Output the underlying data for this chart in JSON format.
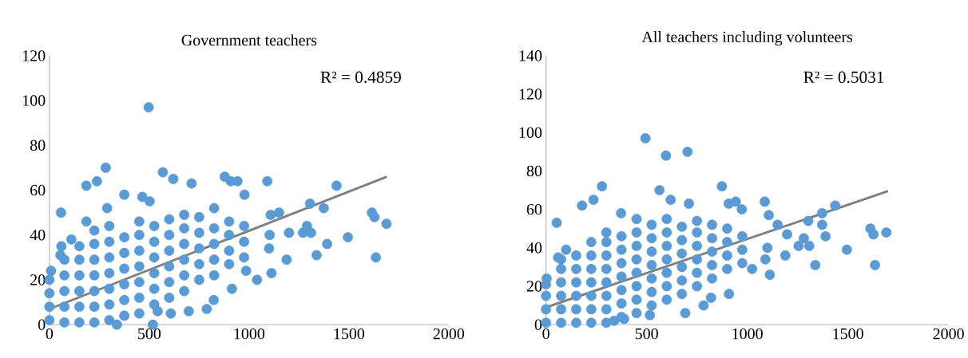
{
  "chart_data": [
    {
      "type": "scatter",
      "title": "Government teachers",
      "xlim": [
        0,
        2000
      ],
      "ylim": [
        0,
        120
      ],
      "xticks": [
        0,
        500,
        1000,
        1500,
        2000
      ],
      "yticks": [
        0,
        20,
        40,
        60,
        80,
        100,
        120
      ],
      "grid": false,
      "marker": "circle",
      "annotations": [
        "R² = 0.4859"
      ],
      "series": [
        {
          "type": "scatter",
          "color": "#5b9bd5",
          "x": [
            0,
            0,
            0,
            0,
            75,
            75,
            75,
            75,
            75,
            150,
            150,
            150,
            150,
            150,
            150,
            225,
            225,
            225,
            225,
            225,
            225,
            225,
            300,
            300,
            300,
            300,
            300,
            300,
            300,
            375,
            375,
            375,
            375,
            375,
            375,
            450,
            450,
            450,
            450,
            450,
            450,
            450,
            525,
            525,
            525,
            525,
            525,
            525,
            600,
            600,
            600,
            600,
            600,
            600,
            675,
            675,
            675,
            675,
            675,
            675,
            750,
            750,
            750,
            750,
            750,
            825,
            825,
            825,
            825,
            825,
            900,
            900,
            900,
            900,
            975,
            975,
            975,
            497,
            282,
            238,
            185,
            58,
            568,
            620,
            712,
            878,
            908,
            942,
            1091,
            977,
            375,
            465,
            502,
            289,
            1305,
            1374,
            1438,
            1615,
            1628,
            1688,
            1635,
            1495,
            1391,
            1338,
            1188,
            1200,
            1270,
            1290,
            1310,
            1108,
            1150,
            1103,
            1100,
            1112,
            1040,
            985,
            914,
            823,
            788,
            698,
            608,
            542,
            518,
            338,
            8,
            60,
            55,
            110,
            185
          ],
          "values": [
            2,
            8,
            14,
            20,
            1,
            8,
            15,
            22,
            29,
            1,
            8,
            15,
            22,
            29,
            35,
            1,
            8,
            15,
            22,
            29,
            36,
            42,
            2,
            9,
            16,
            23,
            30,
            37,
            44,
            4,
            11,
            18,
            25,
            32,
            39,
            5,
            12,
            19,
            26,
            33,
            40,
            46,
            9,
            16,
            23,
            30,
            37,
            44,
            12,
            19,
            26,
            33,
            40,
            47,
            15,
            22,
            29,
            36,
            43,
            49,
            20,
            27,
            34,
            41,
            48,
            22,
            29,
            36,
            43,
            52,
            27,
            33,
            40,
            46,
            30,
            37,
            44,
            97,
            70,
            64,
            62,
            50,
            68,
            65,
            63,
            66,
            64,
            64,
            64,
            58,
            58,
            57,
            55,
            52,
            54,
            52,
            62,
            50,
            48,
            45,
            30,
            39,
            36,
            31,
            29,
            41,
            41,
            44,
            41,
            49,
            50,
            40,
            34,
            23,
            20,
            24,
            16,
            11,
            7,
            6,
            5,
            6,
            0,
            0,
            24,
            35,
            31,
            38,
            46
          ]
        },
        {
          "type": "line",
          "color": "#7f7f7f",
          "marker": "none",
          "x": [
            0,
            1690
          ],
          "values": [
            7,
            66
          ]
        }
      ]
    },
    {
      "type": "scatter",
      "title": "All teachers including volunteers",
      "xlim": [
        0,
        2000
      ],
      "ylim": [
        0,
        140
      ],
      "xticks": [
        0,
        500,
        1000,
        1500,
        2000
      ],
      "yticks": [
        0,
        20,
        40,
        60,
        80,
        100,
        120,
        140
      ],
      "grid": false,
      "marker": "circle",
      "annotations": [
        "R² = 0.5031"
      ],
      "series": [
        {
          "type": "scatter",
          "color": "#5b9bd5",
          "x": [
            0,
            0,
            0,
            0,
            75,
            75,
            75,
            75,
            75,
            75,
            150,
            150,
            150,
            150,
            150,
            150,
            225,
            225,
            225,
            225,
            225,
            225,
            225,
            300,
            300,
            300,
            300,
            300,
            300,
            300,
            300,
            375,
            375,
            375,
            375,
            375,
            375,
            375,
            450,
            450,
            450,
            450,
            450,
            450,
            450,
            450,
            525,
            525,
            525,
            525,
            525,
            525,
            525,
            600,
            600,
            600,
            600,
            600,
            600,
            600,
            675,
            675,
            675,
            675,
            675,
            675,
            750,
            750,
            750,
            750,
            750,
            750,
            825,
            825,
            825,
            825,
            825,
            900,
            900,
            900,
            900,
            975,
            975,
            975,
            494,
            596,
            703,
            278,
            874,
            236,
            179,
            53,
            564,
            619,
            710,
            373,
            1087,
            1107,
            908,
            943,
            973,
            1437,
            1372,
            1303,
            1372,
            1389,
            1198,
            1151,
            1255,
            1281,
            1308,
            1495,
            1612,
            1627,
            1691,
            1635,
            1338,
            1189,
            1100,
            1112,
            1090,
            1024,
            909,
            820,
            783,
            692,
            516,
            338,
            388,
            3,
            60,
            100
          ],
          "values": [
            1,
            8,
            15,
            21,
            1,
            8,
            15,
            22,
            29,
            34,
            1,
            8,
            15,
            22,
            29,
            36,
            1,
            8,
            15,
            22,
            29,
            36,
            43,
            1,
            8,
            15,
            22,
            29,
            36,
            43,
            48,
            4,
            11,
            18,
            25,
            32,
            39,
            46,
            6,
            13,
            20,
            27,
            34,
            41,
            48,
            55,
            10,
            17,
            24,
            31,
            38,
            45,
            52,
            13,
            20,
            27,
            34,
            41,
            48,
            55,
            16,
            23,
            30,
            37,
            44,
            51,
            20,
            27,
            34,
            41,
            48,
            54,
            24,
            31,
            38,
            45,
            52,
            29,
            36,
            43,
            50,
            32,
            39,
            46,
            97,
            88,
            90,
            72,
            72,
            65,
            62,
            53,
            70,
            65,
            63,
            58,
            64,
            57,
            63,
            64,
            60,
            62,
            58,
            54,
            52,
            46,
            47,
            52,
            41,
            45,
            41,
            39,
            50,
            47,
            48,
            31,
            31,
            36,
            40,
            26,
            34,
            29,
            16,
            14,
            10,
            6,
            5,
            2,
            3,
            24,
            35,
            39
          ]
        },
        {
          "type": "line",
          "color": "#7f7f7f",
          "marker": "none",
          "x": [
            0,
            1700
          ],
          "values": [
            9,
            69.5
          ]
        }
      ]
    }
  ]
}
